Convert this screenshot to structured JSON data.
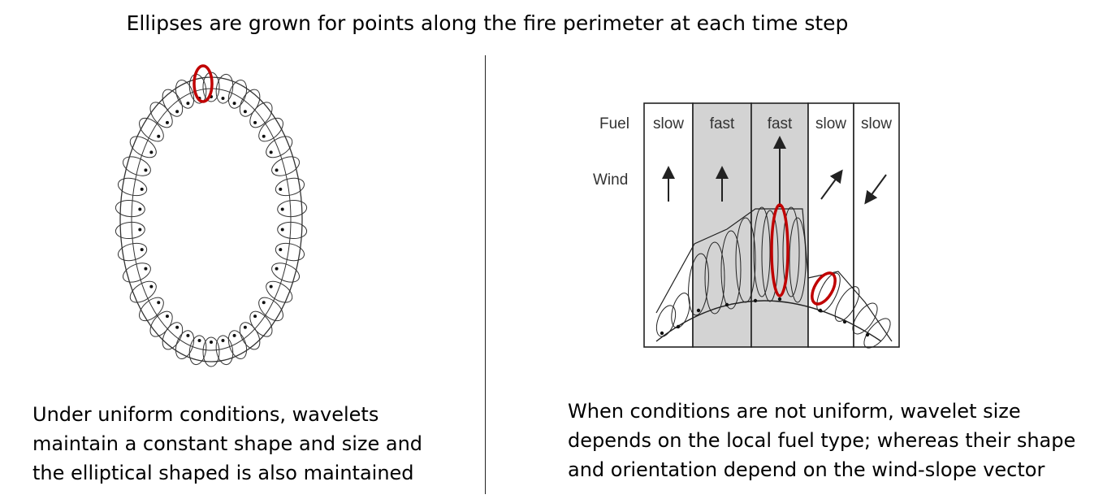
{
  "title": "Ellipses are grown for points along the fire perimeter at each time step",
  "left_panel": {
    "caption_lines": [
      "Under uniform conditions, wavelets",
      "maintain a constant shape and size and",
      "the elliptical shaped is also maintained"
    ]
  },
  "right_panel": {
    "row_labels": {
      "fuel": "Fuel",
      "wind": "Wind"
    },
    "columns": [
      {
        "fuel": "slow",
        "shaded": false,
        "wind": "up-short"
      },
      {
        "fuel": "fast",
        "shaded": true,
        "wind": "up-short"
      },
      {
        "fuel": "fast",
        "shaded": true,
        "wind": "up-long"
      },
      {
        "fuel": "slow",
        "shaded": false,
        "wind": "up-right"
      },
      {
        "fuel": "slow",
        "shaded": false,
        "wind": "down-left"
      }
    ],
    "caption_lines": [
      "When conditions are not uniform, wavelet size",
      "depends on the local fuel type; whereas their shape",
      "and orientation depend on the wind-slope vector"
    ]
  },
  "colors": {
    "highlight": "#c00000",
    "shade": "#d3d3d3",
    "ink": "#333333"
  }
}
